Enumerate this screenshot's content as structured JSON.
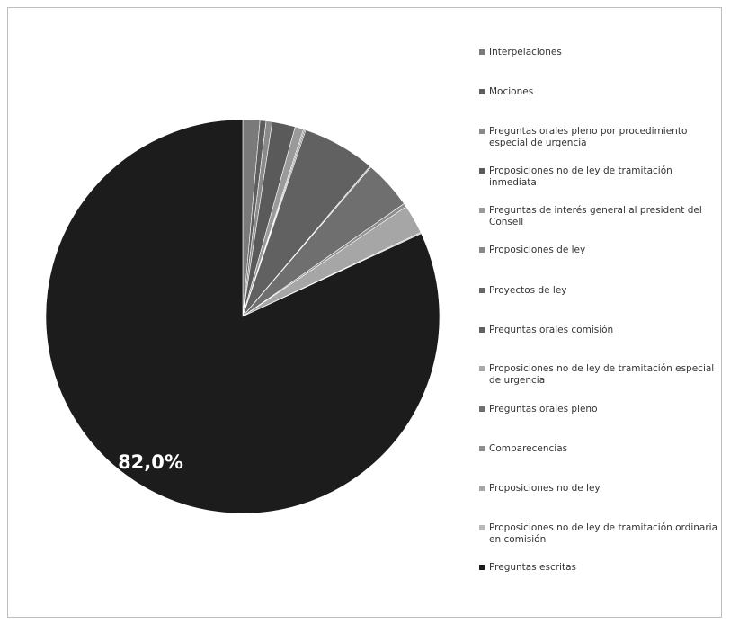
{
  "chart_data": {
    "type": "pie",
    "slices": [
      {
        "label": "Interpelaciones",
        "value": 1.4,
        "color": "#7a7a7a"
      },
      {
        "label": "Mociones",
        "value": 0.5,
        "color": "#5e5e5e"
      },
      {
        "label": "Preguntas orales pleno por procedimiento especial de urgencia",
        "value": 0.5,
        "color": "#8a8a8a"
      },
      {
        "label": "Proposiciones no de ley de tramitación inmediata",
        "value": 1.9,
        "color": "#5a5a5a"
      },
      {
        "label": "Preguntas de interés general al president del Consell",
        "value": 0.7,
        "color": "#9a9a9a"
      },
      {
        "label": "Proposiciones de ley",
        "value": 0.1,
        "color": "#888888"
      },
      {
        "label": "Proyectos de ley",
        "value": 0.1,
        "color": "#666666"
      },
      {
        "label": "Preguntas orales comisión",
        "value": 6.0,
        "color": "#616161"
      },
      {
        "label": "Proposiciones no de ley  de tramitación especial de urgencia",
        "value": 0.1,
        "color": "#a8a8a8"
      },
      {
        "label": "Preguntas orales pleno",
        "value": 4.0,
        "color": "#6f6f6f"
      },
      {
        "label": "Comparecencias",
        "value": 0.3,
        "color": "#8e8e8e"
      },
      {
        "label": "Proposiciones no de ley",
        "value": 2.4,
        "color": "#a6a6a6"
      },
      {
        "label": "Proposiciones no de ley de tramitación ordinaria en comisión",
        "value": 0.1,
        "color": "#b9b9b9"
      },
      {
        "label": "Preguntas escritas",
        "value": 82.0,
        "color": "#1c1c1c"
      }
    ],
    "data_labels": [
      {
        "label": "Preguntas escritas",
        "text": "82,0%",
        "color": "#ffffff"
      }
    ],
    "legend_position": "right"
  }
}
